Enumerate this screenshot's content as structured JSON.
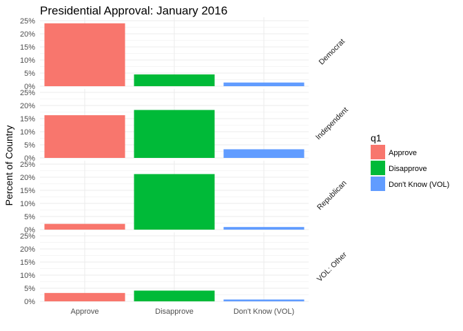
{
  "chart_data": {
    "type": "bar",
    "title": "Presidential Approval: January 2016",
    "ylabel": "Percent of Country",
    "xlabel": "",
    "categories": [
      "Approve",
      "Disapprove",
      "Don't Know (VOL)"
    ],
    "y_ticks": [
      "0%",
      "5%",
      "10%",
      "15%",
      "20%",
      "25%"
    ],
    "ylim": [
      0,
      25
    ],
    "grid": true,
    "legend": {
      "title": "q1",
      "placement": "right",
      "entries": [
        "Approve",
        "Disapprove",
        "Don't Know (VOL)"
      ]
    },
    "colors": [
      "#F8766D",
      "#00BA38",
      "#619CFF"
    ],
    "facets": [
      {
        "name": "Democrat",
        "values": [
          24.0,
          4.5,
          1.4
        ]
      },
      {
        "name": "Independent",
        "values": [
          16.3,
          18.3,
          3.3
        ]
      },
      {
        "name": "Republican",
        "values": [
          2.2,
          21.2,
          1.0
        ]
      },
      {
        "name": "VOL: Other",
        "values": [
          3.2,
          4.1,
          0.7
        ]
      }
    ]
  }
}
